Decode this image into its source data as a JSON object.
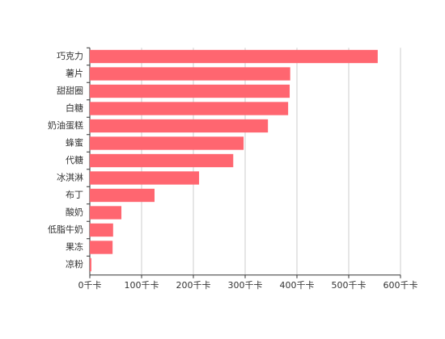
{
  "chart_data": {
    "type": "barh",
    "categories": [
      "巧克力",
      "薯片",
      "甜甜圈",
      "白糖",
      "奶油蛋糕",
      "蜂蜜",
      "代糖",
      "冰淇淋",
      "布丁",
      "酸奶",
      "低脂牛奶",
      "果冻",
      "凉粉"
    ],
    "values": [
      556,
      387,
      386,
      383,
      344,
      297,
      277,
      211,
      125,
      61,
      45,
      44,
      3
    ],
    "color": "#ff6670",
    "xlim": [
      0,
      600
    ],
    "xticks": [
      {
        "value": 0,
        "label": "0千卡"
      },
      {
        "value": 100,
        "label": "100千卡"
      },
      {
        "value": 200,
        "label": "200千卡"
      },
      {
        "value": 300,
        "label": "300千卡"
      },
      {
        "value": 400,
        "label": "400千卡"
      },
      {
        "value": 500,
        "label": "500千卡"
      },
      {
        "value": 600,
        "label": "600千卡"
      }
    ],
    "grid": true
  }
}
